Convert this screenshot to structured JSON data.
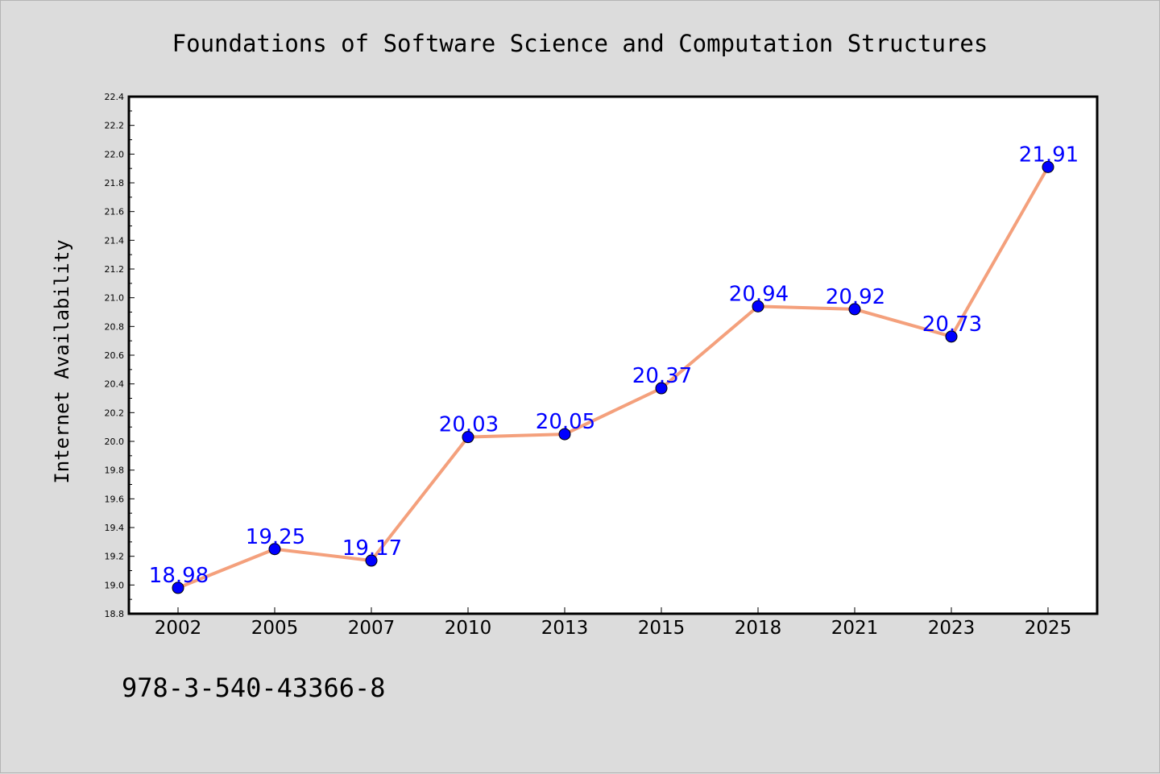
{
  "chart_data": {
    "type": "line",
    "title": "Foundations of Software Science and Computation Structures",
    "xlabel": "",
    "ylabel": "Internet Availability",
    "categories": [
      "2002",
      "2005",
      "2007",
      "2010",
      "2013",
      "2015",
      "2018",
      "2021",
      "2023",
      "2025"
    ],
    "series": [
      {
        "values": [
          18.98,
          19.25,
          19.17,
          20.03,
          20.05,
          20.37,
          20.94,
          20.92,
          20.73,
          21.91
        ],
        "labels": [
          "18.98",
          "19.25",
          "19.17",
          "20.03",
          "20.05",
          "20.37",
          "20.94",
          "20.92",
          "20.73",
          "21.91"
        ],
        "line_color": "#f4a07c",
        "marker_color": "#0000ff"
      }
    ],
    "ylim": [
      18.8,
      22.4
    ],
    "yticks": [
      "18.8",
      "19.0",
      "19.2",
      "19.4",
      "19.6",
      "19.8",
      "20.0",
      "20.2",
      "20.4",
      "20.6",
      "20.8",
      "21.0",
      "21.2",
      "21.4",
      "21.6",
      "21.8",
      "22.0",
      "22.2",
      "22.4"
    ],
    "grid": false,
    "legend": "none"
  },
  "footer": {
    "isbn": "978-3-540-43366-8"
  }
}
